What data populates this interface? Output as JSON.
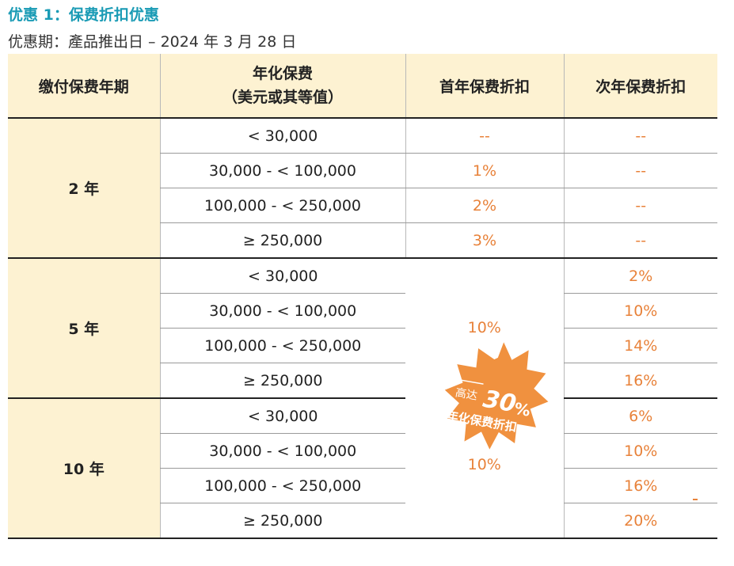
{
  "header": {
    "title": "优惠 1：保费折扣优惠",
    "subtitle": "优惠期：產品推出日 – 2024 年 3 月 28 日"
  },
  "table": {
    "col_term": "缴付保费年期",
    "col_premium_line1": "年化保费",
    "col_premium_line2": "（美元或其等值）",
    "col_first_year": "首年保费折扣",
    "col_second_year": "次年保费折扣",
    "groups": [
      {
        "term": "2 年",
        "rows": [
          {
            "range": "< 30,000",
            "first": "--",
            "second": "--"
          },
          {
            "range": "30,000 - < 100,000",
            "first": "1%",
            "second": "--"
          },
          {
            "range": "100,000 - < 250,000",
            "first": "2%",
            "second": "--"
          },
          {
            "range": "≥ 250,000",
            "first": "3%",
            "second": "--"
          }
        ]
      },
      {
        "term": "5 年",
        "rows": [
          {
            "range": "< 30,000",
            "second": "2%"
          },
          {
            "range": "30,000 - < 100,000",
            "second": "10%"
          },
          {
            "range": "100,000 - < 250,000",
            "second": "14%"
          },
          {
            "range": "≥ 250,000",
            "second": "16%"
          }
        ]
      },
      {
        "term": "10 年",
        "rows": [
          {
            "range": "< 30,000",
            "second": "6%"
          },
          {
            "range": "30,000 - < 100,000",
            "second": "10%"
          },
          {
            "range": "100,000 - < 250,000",
            "second": "16%"
          },
          {
            "range": "≥ 250,000",
            "second": "20%"
          }
        ]
      }
    ],
    "first_year_5yr": "10%",
    "first_year_10yr": "10%"
  },
  "badge": {
    "prefix": "高达",
    "value": "30",
    "percent": "%",
    "caption": "年化保费折扣"
  },
  "colors": {
    "title": "#1a9bb5",
    "header_bg": "#fdf2d2",
    "accent": "#e8823a",
    "badge": "#f0913f"
  }
}
